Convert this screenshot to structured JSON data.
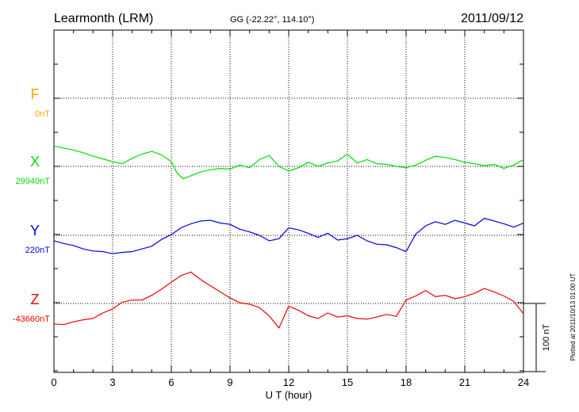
{
  "header": {
    "station": "Learmonth (LRM)",
    "coords": "GG (-22.22°, 114.10°)",
    "date": "2011/09/12"
  },
  "footer": {
    "plotted": "Plotted at 2011/10/13 01:00 UT",
    "scale_label": "100 nT"
  },
  "chart_data": {
    "type": "line",
    "xlabel": "U T (hour)",
    "xlim": [
      0,
      24
    ],
    "xticks": [
      "0",
      "3",
      "6",
      "9",
      "12",
      "15",
      "18",
      "21",
      "24"
    ],
    "grid": true,
    "series": [
      {
        "name": "F",
        "baseline_label": "0nT",
        "color": "#ffa500",
        "x": [],
        "y": []
      },
      {
        "name": "X",
        "baseline_label": "29940nT",
        "color": "#00dd00",
        "x": [
          0,
          0.5,
          1,
          1.5,
          2,
          2.5,
          3,
          3.5,
          4,
          4.5,
          5,
          5.5,
          6,
          6.3,
          6.6,
          6.9,
          7.5,
          8,
          8.5,
          9,
          9.5,
          10,
          10.5,
          11,
          11.5,
          12,
          12.5,
          13,
          13.5,
          14,
          14.5,
          15,
          15.5,
          16,
          16.5,
          17,
          17.5,
          18,
          18.5,
          19,
          19.5,
          20,
          20.5,
          21,
          21.5,
          22,
          22.5,
          23,
          23.5,
          24
        ],
        "y": [
          30,
          27,
          24,
          20,
          15,
          11,
          7,
          4,
          12,
          18,
          22,
          17,
          7,
          -10,
          -18,
          -15,
          -8,
          -5,
          -3,
          -4,
          2,
          -2,
          10,
          16,
          0,
          -7,
          -2,
          6,
          0,
          5,
          8,
          18,
          5,
          10,
          4,
          3,
          0,
          -2,
          2,
          9,
          15,
          13,
          10,
          6,
          4,
          1,
          3,
          -3,
          2,
          10
        ]
      },
      {
        "name": "Y",
        "baseline_label": "220nT",
        "color": "#0000dd",
        "x": [
          0,
          0.5,
          1,
          1.5,
          2,
          2.5,
          3,
          3.5,
          4,
          4.5,
          5,
          5.5,
          6,
          6.5,
          7,
          7.5,
          8,
          8.5,
          9,
          9.5,
          10,
          10.5,
          11,
          11.5,
          12,
          12.5,
          13,
          13.5,
          14,
          14.5,
          15,
          15.5,
          16,
          16.5,
          17,
          17.5,
          18,
          18.5,
          19,
          19.5,
          20,
          20.5,
          21,
          21.5,
          22,
          22.5,
          23,
          23.5,
          24
        ],
        "y": [
          -8,
          -12,
          -15,
          -20,
          -23,
          -24,
          -27,
          -25,
          -24,
          -20,
          -16,
          -6,
          1,
          11,
          17,
          21,
          22,
          18,
          16,
          9,
          5,
          0,
          -8,
          -5,
          11,
          8,
          3,
          -3,
          3,
          -7,
          -5,
          0,
          -8,
          -13,
          -14,
          -18,
          -24,
          2,
          14,
          20,
          16,
          22,
          18,
          14,
          25,
          21,
          17,
          12,
          18
        ]
      },
      {
        "name": "Z",
        "baseline_label": "-43660nT",
        "color": "#ee0000",
        "x": [
          0,
          0.5,
          1,
          1.5,
          2,
          2.5,
          3,
          3.5,
          4,
          4.5,
          5,
          5.5,
          6,
          6.5,
          7,
          7.5,
          8,
          8.5,
          9,
          9.5,
          10,
          10.5,
          11,
          11.5,
          12,
          12.5,
          13,
          13.5,
          14,
          14.5,
          15,
          15.5,
          16,
          16.5,
          17,
          17.5,
          18,
          18.5,
          19,
          19.5,
          20,
          20.5,
          21,
          21.5,
          22,
          22.5,
          23,
          23.5,
          24
        ],
        "y": [
          -30,
          -31,
          -27,
          -24,
          -22,
          -14,
          -8,
          2,
          5,
          5,
          12,
          21,
          31,
          41,
          46,
          35,
          26,
          17,
          8,
          1,
          -1,
          -6,
          -18,
          -36,
          -4,
          -10,
          -18,
          -22,
          -14,
          -20,
          -18,
          -22,
          -23,
          -20,
          -16,
          -19,
          5,
          11,
          19,
          10,
          12,
          7,
          10,
          15,
          22,
          17,
          11,
          3,
          -15
        ]
      }
    ]
  }
}
